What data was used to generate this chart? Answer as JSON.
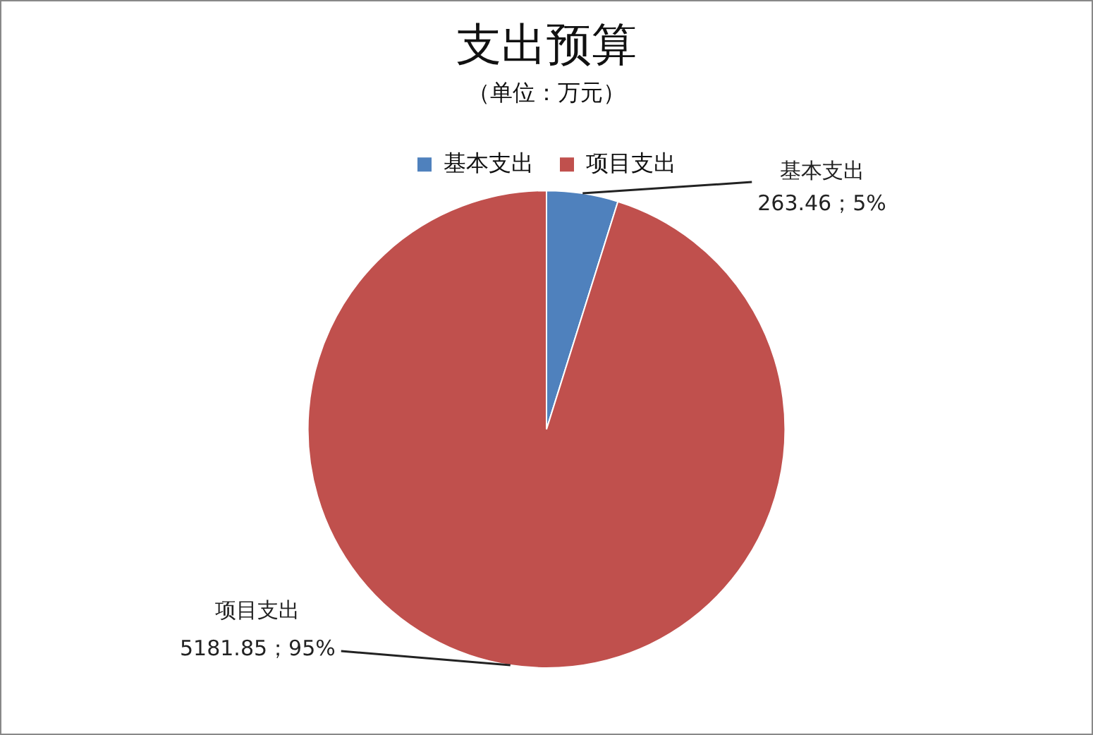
{
  "chart_data": {
    "type": "pie",
    "title": "支出预算",
    "subtitle": "（单位：万元）",
    "categories": [
      "基本支出",
      "项目支出"
    ],
    "values": [
      263.46,
      5181.85
    ],
    "colors": [
      "#4f81bd",
      "#c0504d"
    ],
    "value_labels": [
      "263.46；5%",
      "5181.85；95%"
    ],
    "legend": "top"
  }
}
